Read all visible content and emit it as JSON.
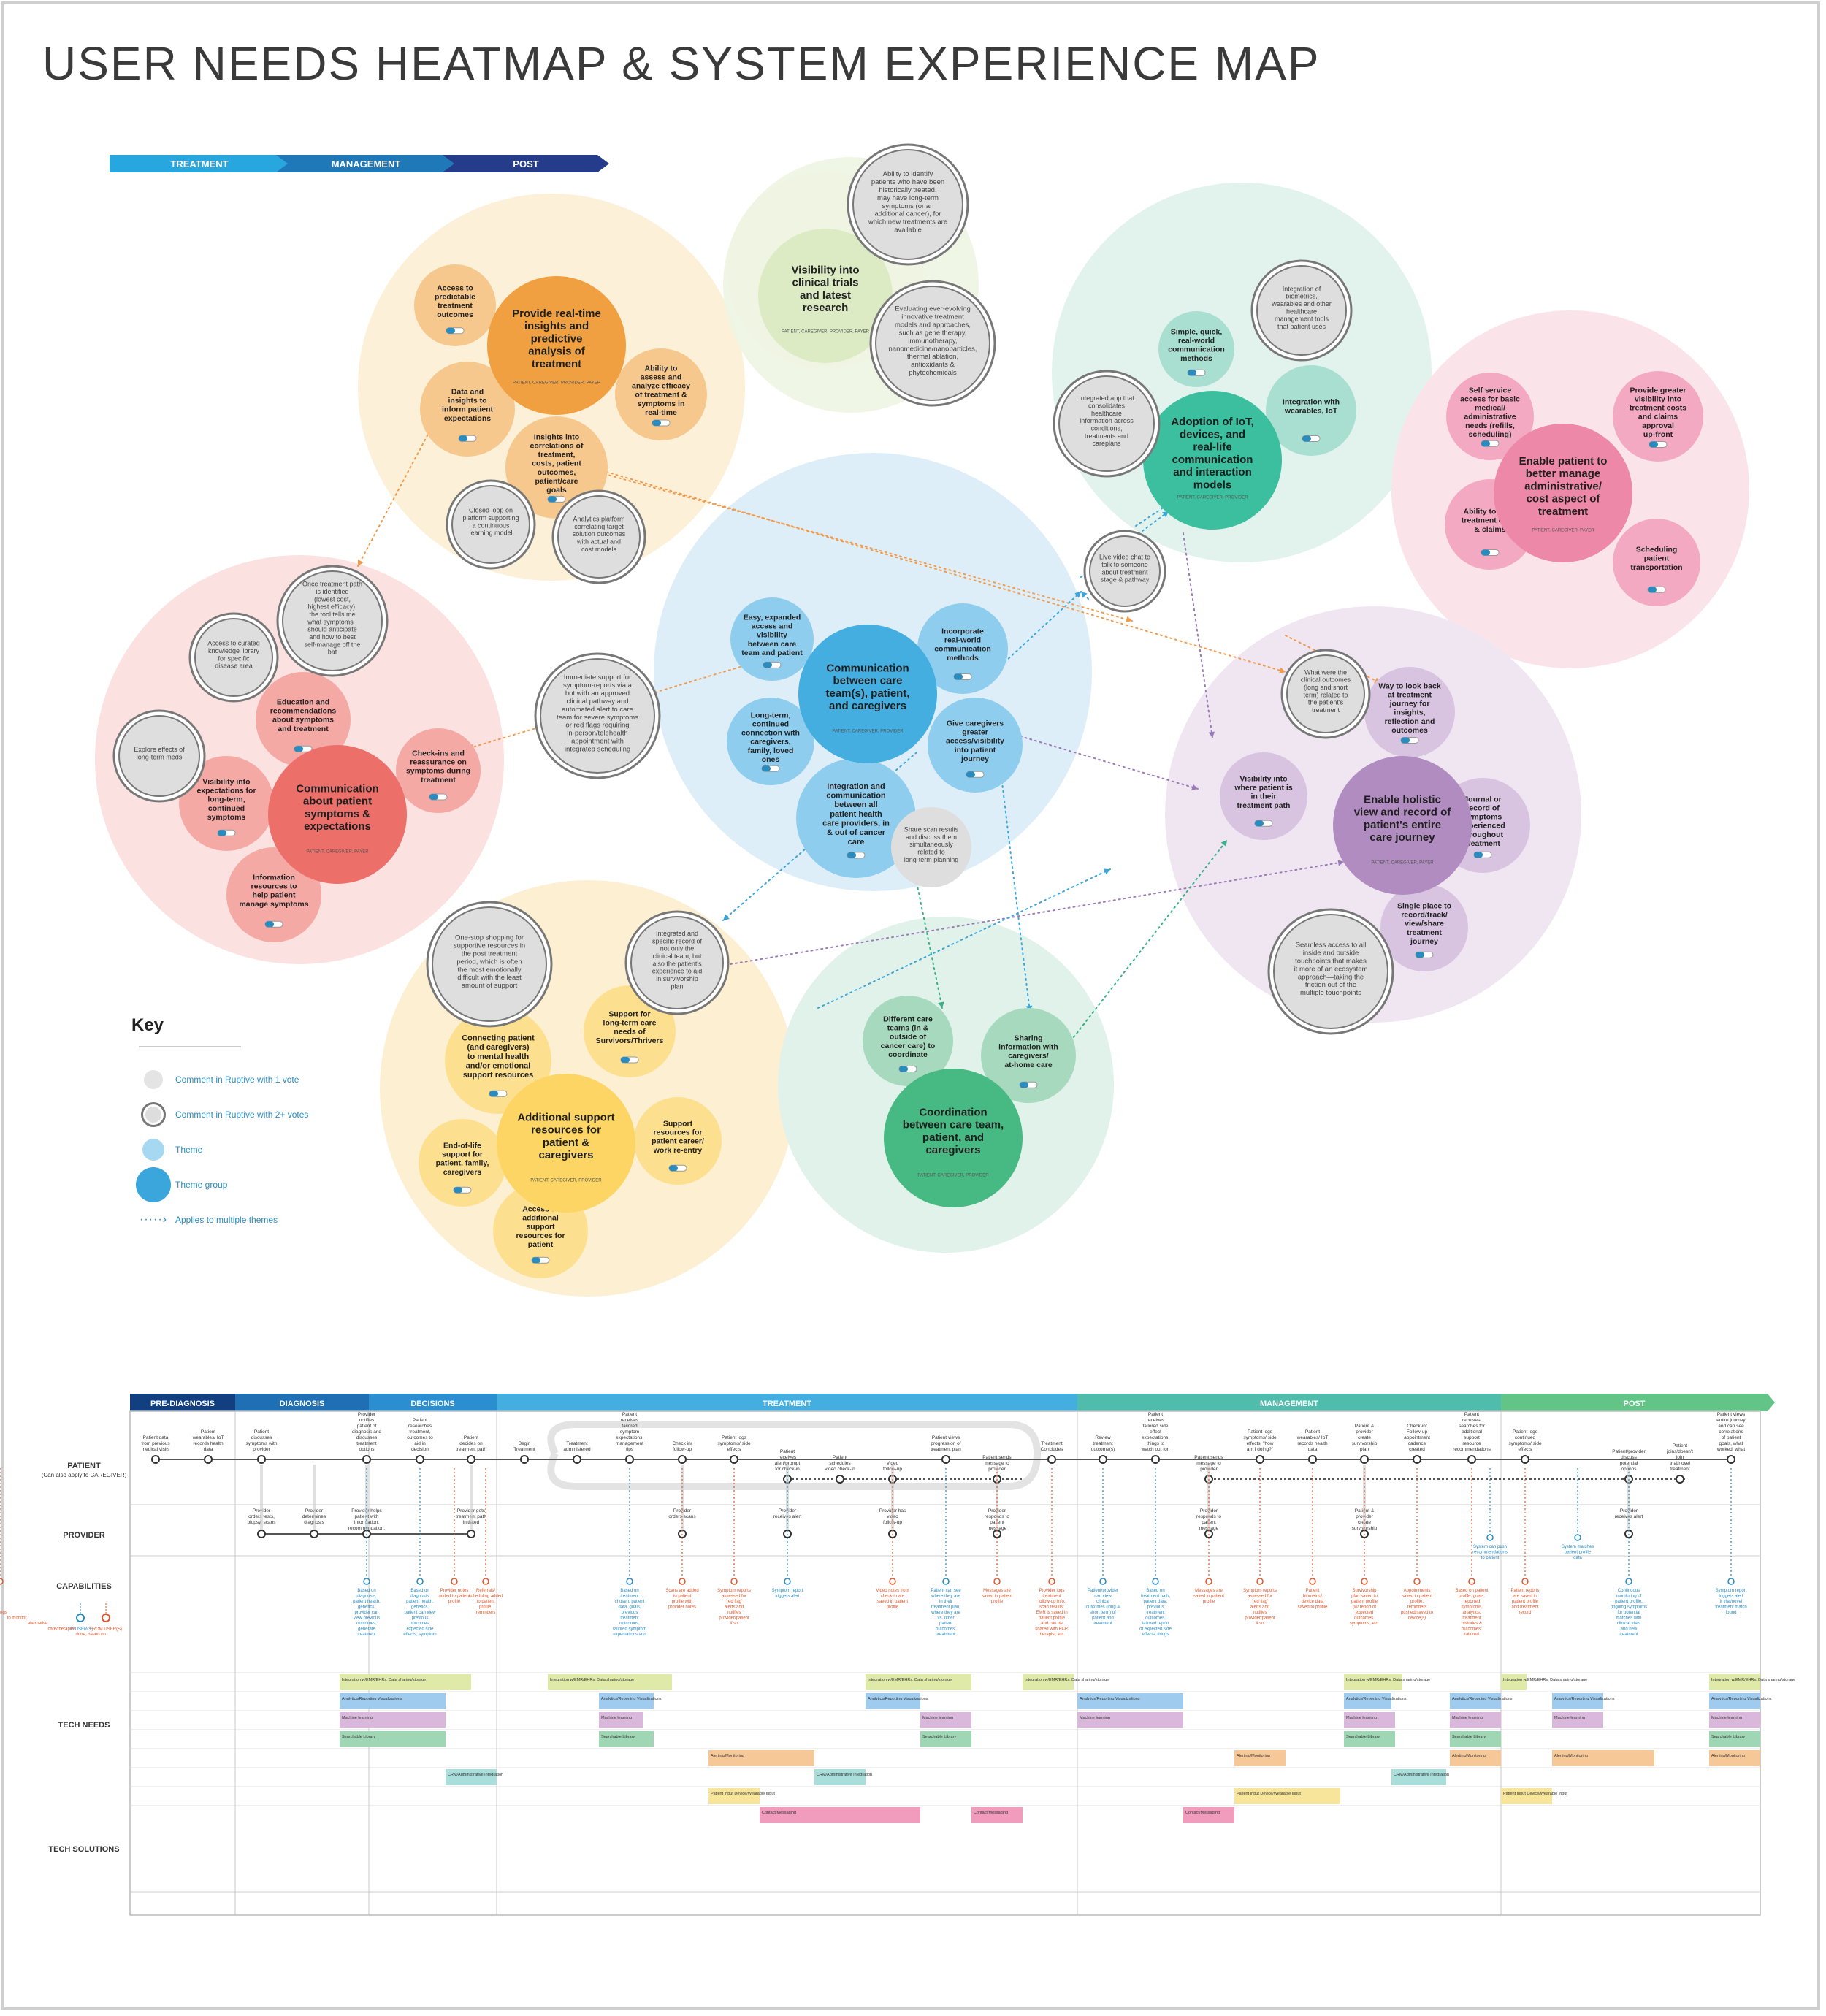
{
  "title": "USER NEEDS HEATMAP & SYSTEM EXPERIENCE MAP",
  "phase_bar": [
    "TREATMENT",
    "MANAGEMENT",
    "POST"
  ],
  "groups": [
    {
      "id": "g_rt",
      "color": "#fdf0d8",
      "label": ""
    },
    {
      "id": "g_vis",
      "color": "#eef5e2",
      "label": ""
    },
    {
      "id": "g_iot",
      "color": "#e2f3ee",
      "label": ""
    },
    {
      "id": "g_admin",
      "color": "#fbe3ea",
      "label": ""
    },
    {
      "id": "g_symp",
      "color": "#fbe1df",
      "label": ""
    },
    {
      "id": "g_comm",
      "color": "#ddeef9",
      "label": ""
    },
    {
      "id": "g_rec",
      "color": "#efe6f2",
      "label": ""
    },
    {
      "id": "g_supp",
      "color": "#fdefd2",
      "label": ""
    },
    {
      "id": "g_coord",
      "color": "#e0f2e9",
      "label": ""
    }
  ],
  "themes": [
    {
      "id": "rt",
      "text": "Provide real-time insights and predictive analysis of treatment",
      "color": "#f0a040",
      "sub": "PATIENT, CAREGIVER, PROVIDER, PAYER"
    },
    {
      "id": "vis",
      "text": "Visibility into clinical trials and latest research",
      "color": "#dcebc4",
      "sub": "PATIENT, CAREGIVER, PROVIDER, PAYER"
    },
    {
      "id": "iot",
      "text": "Adoption of IoT, devices, and real-life communication and interaction models",
      "color": "#3cbf9f",
      "sub": "PATIENT, CAREGIVER, PROVIDER"
    },
    {
      "id": "admin",
      "text": "Enable patient to better manage administrative/ cost aspect of treatment",
      "color": "#ee88a8",
      "sub": "PATIENT, CAREGIVER, PAYER"
    },
    {
      "id": "symp",
      "text": "Communication about patient symptoms & expectations",
      "color": "#ec6f6a",
      "sub": "PATIENT, CAREGIVER, PAYER"
    },
    {
      "id": "comm",
      "text": "Communication between care team(s), patient, and caregivers",
      "color": "#44aee0",
      "sub": "PATIENT, CAREGIVER, PROVIDER"
    },
    {
      "id": "rec",
      "text": "Enable holistic view and record of patient's entire care journey",
      "color": "#b18cc0",
      "sub": "PATIENT, CAREGIVER, PAYER"
    },
    {
      "id": "supp",
      "text": "Additional support resources for patient & caregivers",
      "color": "#fcd564",
      "sub": "PATIENT, CAREGIVER, PROVIDER"
    },
    {
      "id": "coord",
      "text": "Coordination between care team, patient, and caregivers",
      "color": "#47b982",
      "sub": "PATIENT, CAREGIVER, PROVIDER"
    }
  ],
  "subthemes": [
    {
      "text": "Access to predictable treatment outcomes",
      "g": "rt"
    },
    {
      "text": "Data and insights to inform patient expectations",
      "g": "rt"
    },
    {
      "text": "Insights into correlations of treatment, costs, patient outcomes, patient/care goals",
      "g": "rt"
    },
    {
      "text": "Ability to assess and analyze efficacy of treatment & symptoms in real-time",
      "g": "rt"
    },
    {
      "text": "Simple, quick, real-world communication methods",
      "g": "iot"
    },
    {
      "text": "Integration with wearables, IoT",
      "g": "iot"
    },
    {
      "text": "Self service access for basic medical/ administrative needs (refills, scheduling)",
      "g": "admin"
    },
    {
      "text": "Provide greater visibility into treatment costs and claims approval up-front",
      "g": "admin"
    },
    {
      "text": "Ability to track treatment costs & claims",
      "g": "admin"
    },
    {
      "text": "Scheduling patient transportation",
      "g": "admin"
    },
    {
      "text": "Education and recommendations about symptoms and treatment",
      "g": "symp"
    },
    {
      "text": "Check-ins and reassurance on symptoms during treatment",
      "g": "symp"
    },
    {
      "text": "Visibility into expectations for long-term, continued symptoms",
      "g": "symp"
    },
    {
      "text": "Information resources to help patient manage symptoms",
      "g": "symp"
    },
    {
      "text": "Easy, expanded access and visibility between care team and patient",
      "g": "comm"
    },
    {
      "text": "Incorporate real-world communication methods",
      "g": "comm"
    },
    {
      "text": "Long-term, continued connection with caregivers, family, loved ones",
      "g": "comm"
    },
    {
      "text": "Give caregivers greater access/visibility into patient journey",
      "g": "comm"
    },
    {
      "text": "Integration and communication between all patient health care providers, in & out of cancer care",
      "g": "comm"
    },
    {
      "text": "Way to look back at treatment journey for insights, reflection and outcomes",
      "g": "rec"
    },
    {
      "text": "Visibility into where patient is in their treatment path",
      "g": "rec"
    },
    {
      "text": "Journal or record of symptoms experienced throughout treatment",
      "g": "rec"
    },
    {
      "text": "Single place to record/track/ view/share treatment journey",
      "g": "rec"
    },
    {
      "text": "Connecting patient (and caregivers) to mental health and/or emotional support resources",
      "g": "supp"
    },
    {
      "text": "Support for long-term care needs of Survivors/Thrivers",
      "g": "supp"
    },
    {
      "text": "Support resources for patient career/ work re-entry",
      "g": "supp"
    },
    {
      "text": "End-of-life support for patient, family, caregivers",
      "g": "supp"
    },
    {
      "text": "Access to additional support resources for patient",
      "g": "supp"
    },
    {
      "text": "Different care teams (in & outside of cancer care) to coordinate",
      "g": "coord"
    },
    {
      "text": "Sharing information with caregivers/ at-home care",
      "g": "coord"
    }
  ],
  "comments": [
    "Closed loop on platform supporting a continuous learning model",
    "Analytics platform correlating target solution outcomes with actual and cost models",
    "Ability to identify patients who have been historically treated, may have long-term symptoms (or an additional cancer), for which new treatments are available",
    "Evaluating ever-evolving innovative treatment models and approaches, such as gene therapy, immunotherapy, nanomedicine/nanoparticles, thermal ablation, antioxidants & phytochemicals",
    "Integration of biometrics, wearables and other healthcare management tools that patient uses",
    "Integrated app that consolidates healthcare information across conditions, treatments and careplans",
    "Live video chat to talk to someone about treatment stage & pathway",
    "Once treatment path is identified (lowest cost, highest efficacy), the tool tells me what symptoms I should anticipate and how to best self-manage off the bat",
    "Access to curated knowledge library for specific disease area",
    "Explore effects of long-term meds",
    "Immediate support for symptom-reports via a bot with an approved clinical pathway and automated alert to care team for severe symptoms or red flags requiring in-person/telehealth appointment with integrated scheduling",
    "Share scan results and discuss them simultaneously related to long-term planning",
    "What were the clinical outcomes (long and short term) related to the patient's treatment",
    "Seamless access to all inside and outside touchpoints that makes it more of an ecosystem approach—taking the friction out of the multiple touchpoints",
    "One-stop shopping for supportive resources in the post treatment period, which is often the most emotionally difficult with the least amount of support",
    "Integrated and specific record of not only the clinical team, but also the patient's experience to aid in survivorship plan"
  ],
  "key": {
    "title": "Key",
    "items": [
      "Comment in Ruptive with 1 vote",
      "Comment in Ruptive with 2+ votes",
      "Theme",
      "Theme group",
      "Applies to multiple themes"
    ]
  },
  "journey": {
    "phases": [
      "PRE-DIAGNOSIS",
      "DIAGNOSIS",
      "DECISIONS",
      "TREATMENT",
      "MANAGEMENT",
      "POST"
    ],
    "lanes": [
      "PATIENT",
      "(Can also apply to CAREGIVER)",
      "PROVIDER",
      "CAPABILITIES",
      "TECH NEEDS",
      "TECH SOLUTIONS"
    ],
    "legend": [
      "TO USER(S)",
      "FROM USER(S)"
    ],
    "patient_steps": [
      "Patient data from previous medical visits",
      "Patient wearables/ IoT records health data",
      "Patient discusses symptoms with provider",
      "Provider notifies patient of diagnosis and discusses treatment options",
      "Patient researches treatment, outcomes to aid in decision",
      "Patient decides on treatment path",
      "Begin Treatment",
      "Treatment administered",
      "Patient receives tailored symptom expectations, management tips",
      "Check in/ follow-up",
      "Patient logs symptoms/ side effects",
      "Patient receives alert/prompt for check-in",
      "Patient schedules video check-in",
      "Video follow-up",
      "Patient views progression of treatment plan",
      "Patient sends message to provider",
      "Treatment Concludes",
      "Review treatment outcome(s)",
      "Patient receives tailored side effect expectations, things to watch out for, continued symptoms, etc.",
      "Patient sends message to provider",
      "Patient logs symptoms/ side effects, \"how am I doing?\"",
      "Patient wearables/ IoT records health data",
      "Patient & provider create survivorship plan",
      "Check-in/ Follow-up appointment cadence created",
      "Patient receives/ searches for additional support resource recommendations",
      "Patient logs continued symptoms/ side effects",
      "Patient/provider discuss potential options",
      "Patient joins/doesn't join trial/novel treatment",
      "Patient views entire journey and can see correlations of patient goals, what worked, what didn't for long-term care"
    ],
    "provider_steps": [
      "Provider orders tests, biopsy, scans",
      "Provider determines diagnosis",
      "Provider helps patient with information, recommendation, etc.",
      "Provider gets treatment path initiated",
      "Provider orders scans",
      "Provider receives alert",
      "Provider has video follow-up",
      "Provider responds to patient message",
      "Provider responds to patient message",
      "Patient & provider create survivorship plan",
      "Provider receives alert"
    ],
    "capabilities": [
      "Based on diagnosis, patient health, genetics, provider can view previous outcomes, generate treatment recommendations",
      "Based on diagnosis, patient health, genetics, patient can view previous outcomes, expected side effects, symptom management, generate treatment recommendations",
      "Provider notes added to patient profile",
      "Referrals/ scheduling added to patient profile, reminders",
      "Based on treatment chosen, patient data, goals, previous treatment outcomes, tailored symptom expectations and management tips are generated and sent to patient",
      "Scans are added to patient profile with provider notes",
      "Symptom reports assessed for 'red flag' alerts and notifies provider/patient if so",
      "Symptom report triggers alert",
      "Video notes from check-in are saved in patient profile",
      "Patient can see where they are in their treatment plan, where they are vs. other patient outcomes, treatment journeys, goals",
      "Messages are saved in patient profile",
      "Provider logs treatment follow-up info, scan results; EMR is saved in patient profile and can be shared with PCP, therapist, etc.",
      "Patient/provider can view clinical outcomes (long & short term) of patient and treatment",
      "Based on treatment path, patient data, previous treatment outcomes, tailored report of expected side effects, things to watch out for, long/short term effects, continued symptoms, etc.",
      "Messages are saved in patient profile",
      "Symptom reports assessed for 'red flag' alerts and notifies provider/patient if so",
      "Patient biometric/ device data saved to profile",
      "Survivorship plan saved to patient profile (w/ report of expected outcomes, symptoms, etc.",
      "Appointments saved in patient profile; reminders pushed/saved to device(s)",
      "Based on patient profile, goals, reported symptoms, analytics, treatment histories & outcomes, tailored recommendations are generated for mental health resources, support groups, lifestyle, etc.",
      "System can push recommendations to patient",
      "Patient reports are saved to patient profile and treatment record",
      "System matches patient profile data",
      "Continuous monitoring of patient profile, ongoing symptoms for potential matches with clinical trials and new treatment options",
      "Symptom report triggers alert if trial/novel treatment match found",
      "On-going tracking and view of side effects, symptoms, things to monitor, alternative care/therapies done, based on patient profiles, goals, outcomes and treatment path"
    ],
    "tech_needs": [
      {
        "label": "Integration w/EMR/EHRs; Data sharing/storage",
        "color": "#dfe9a8"
      },
      {
        "label": "Analytics/Reporting Visualizations",
        "color": "#9ecbee"
      },
      {
        "label": "Machine learning",
        "color": "#d9b8dc"
      },
      {
        "label": "Searchable Library",
        "color": "#9fd6b4"
      },
      {
        "label": "Alerting/Monitoring",
        "color": "#f7c897"
      },
      {
        "label": "CRM/Administrative Integration",
        "color": "#a9dedb"
      },
      {
        "label": "Patient Input Device/Wearable Input",
        "color": "#f6e59b"
      },
      {
        "label": "Contact/Messaging",
        "color": "#f19bbd"
      }
    ]
  }
}
